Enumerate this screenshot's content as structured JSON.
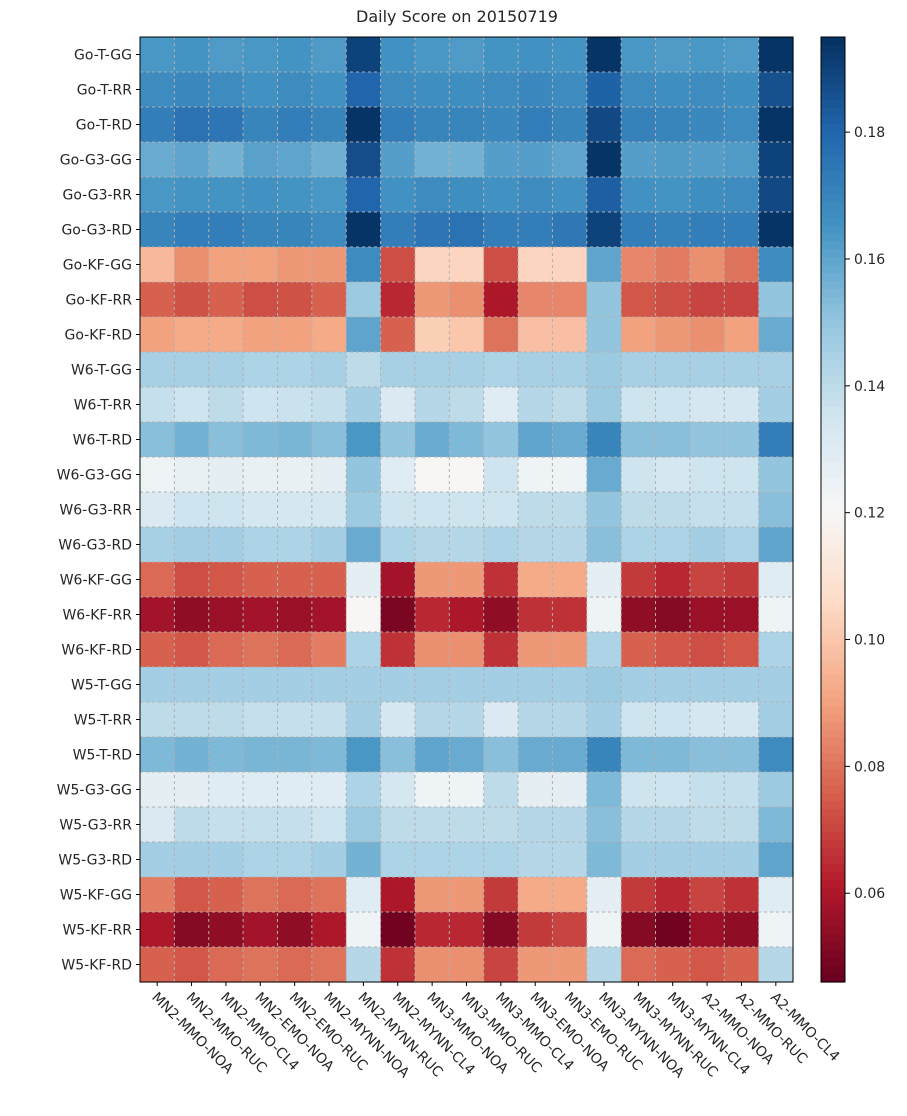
{
  "chart_data": {
    "type": "heatmap",
    "title": "Daily Score on 20150719",
    "xlabel": "",
    "ylabel": "",
    "columns": [
      "MN2-MMO-NOA",
      "MN2-MMO-RUC",
      "MN2-MMO-CL4",
      "MN2-EMO-NOA",
      "MN2-EMO-RUC",
      "MN2-MYNN-NOA",
      "MN2-MYNN-RUC",
      "MN2-MYNN-CL4",
      "MN3-MMO-NOA",
      "MN3-MMO-RUC",
      "MN3-MMO-CL4",
      "MN3-EMO-NOA",
      "MN3-EMO-RUC",
      "MN3-MYNN-NOA",
      "MN3-MYNN-RUC",
      "MN3-MYNN-CL4",
      "A2-MMO-NOA",
      "A2-MMO-RUC",
      "A2-MMO-CL4"
    ],
    "rows": [
      "Go-T-GG",
      "Go-T-RR",
      "Go-T-RD",
      "Go-G3-GG",
      "Go-G3-RR",
      "Go-G3-RD",
      "Go-KF-GG",
      "Go-KF-RR",
      "Go-KF-RD",
      "W6-T-GG",
      "W6-T-RR",
      "W6-T-RD",
      "W6-G3-GG",
      "W6-G3-RR",
      "W6-G3-RD",
      "W6-KF-GG",
      "W6-KF-RR",
      "W6-KF-RD",
      "W5-T-GG",
      "W5-T-RR",
      "W5-T-RD",
      "W5-G3-GG",
      "W5-G3-RR",
      "W5-G3-RD",
      "W5-KF-GG",
      "W5-KF-RR",
      "W5-KF-RD"
    ],
    "values": [
      [
        0.164,
        0.165,
        0.163,
        0.164,
        0.165,
        0.163,
        0.19,
        0.166,
        0.164,
        0.163,
        0.165,
        0.166,
        0.165,
        0.194,
        0.164,
        0.163,
        0.164,
        0.163,
        0.194
      ],
      [
        0.168,
        0.169,
        0.168,
        0.166,
        0.168,
        0.166,
        0.18,
        0.168,
        0.167,
        0.167,
        0.168,
        0.169,
        0.168,
        0.181,
        0.168,
        0.167,
        0.168,
        0.167,
        0.186
      ],
      [
        0.172,
        0.176,
        0.175,
        0.17,
        0.172,
        0.17,
        0.194,
        0.172,
        0.17,
        0.17,
        0.169,
        0.172,
        0.17,
        0.188,
        0.171,
        0.17,
        0.169,
        0.168,
        0.194
      ],
      [
        0.158,
        0.16,
        0.156,
        0.161,
        0.16,
        0.157,
        0.187,
        0.162,
        0.156,
        0.156,
        0.162,
        0.162,
        0.16,
        0.194,
        0.162,
        0.163,
        0.162,
        0.163,
        0.19
      ],
      [
        0.164,
        0.165,
        0.165,
        0.166,
        0.165,
        0.164,
        0.18,
        0.166,
        0.168,
        0.167,
        0.166,
        0.168,
        0.166,
        0.182,
        0.166,
        0.165,
        0.167,
        0.168,
        0.188
      ],
      [
        0.17,
        0.172,
        0.172,
        0.17,
        0.17,
        0.168,
        0.194,
        0.172,
        0.175,
        0.176,
        0.172,
        0.172,
        0.174,
        0.19,
        0.172,
        0.171,
        0.172,
        0.172,
        0.194
      ],
      [
        0.096,
        0.086,
        0.09,
        0.09,
        0.088,
        0.088,
        0.168,
        0.072,
        0.104,
        0.104,
        0.072,
        0.104,
        0.104,
        0.16,
        0.084,
        0.082,
        0.086,
        0.08,
        0.168
      ],
      [
        0.076,
        0.073,
        0.076,
        0.072,
        0.073,
        0.076,
        0.148,
        0.064,
        0.088,
        0.086,
        0.06,
        0.084,
        0.084,
        0.15,
        0.074,
        0.072,
        0.07,
        0.07,
        0.15
      ],
      [
        0.09,
        0.092,
        0.092,
        0.09,
        0.09,
        0.092,
        0.16,
        0.076,
        0.102,
        0.1,
        0.08,
        0.098,
        0.098,
        0.15,
        0.09,
        0.088,
        0.086,
        0.09,
        0.158
      ],
      [
        0.145,
        0.145,
        0.145,
        0.144,
        0.144,
        0.145,
        0.14,
        0.145,
        0.145,
        0.145,
        0.144,
        0.145,
        0.145,
        0.148,
        0.145,
        0.145,
        0.145,
        0.145,
        0.145
      ],
      [
        0.138,
        0.136,
        0.14,
        0.136,
        0.137,
        0.138,
        0.146,
        0.132,
        0.142,
        0.14,
        0.13,
        0.142,
        0.14,
        0.148,
        0.136,
        0.136,
        0.134,
        0.134,
        0.146
      ],
      [
        0.152,
        0.156,
        0.152,
        0.154,
        0.155,
        0.152,
        0.164,
        0.15,
        0.158,
        0.154,
        0.15,
        0.16,
        0.158,
        0.17,
        0.152,
        0.152,
        0.15,
        0.15,
        0.172
      ],
      [
        0.124,
        0.126,
        0.128,
        0.126,
        0.126,
        0.128,
        0.15,
        0.13,
        0.12,
        0.12,
        0.136,
        0.124,
        0.124,
        0.158,
        0.136,
        0.134,
        0.136,
        0.136,
        0.15
      ],
      [
        0.132,
        0.136,
        0.136,
        0.134,
        0.134,
        0.134,
        0.148,
        0.136,
        0.136,
        0.136,
        0.136,
        0.14,
        0.14,
        0.15,
        0.14,
        0.14,
        0.138,
        0.138,
        0.152
      ],
      [
        0.145,
        0.146,
        0.146,
        0.144,
        0.144,
        0.146,
        0.158,
        0.144,
        0.142,
        0.142,
        0.144,
        0.142,
        0.142,
        0.152,
        0.144,
        0.144,
        0.146,
        0.144,
        0.16
      ],
      [
        0.078,
        0.072,
        0.074,
        0.076,
        0.076,
        0.076,
        0.128,
        0.058,
        0.088,
        0.088,
        0.066,
        0.092,
        0.092,
        0.128,
        0.068,
        0.064,
        0.07,
        0.068,
        0.13
      ],
      [
        0.058,
        0.054,
        0.056,
        0.058,
        0.056,
        0.058,
        0.12,
        0.05,
        0.064,
        0.06,
        0.054,
        0.066,
        0.066,
        0.124,
        0.054,
        0.052,
        0.056,
        0.056,
        0.124
      ],
      [
        0.076,
        0.074,
        0.078,
        0.08,
        0.078,
        0.082,
        0.144,
        0.066,
        0.086,
        0.086,
        0.066,
        0.088,
        0.088,
        0.144,
        0.076,
        0.074,
        0.072,
        0.074,
        0.144
      ],
      [
        0.146,
        0.146,
        0.146,
        0.146,
        0.146,
        0.146,
        0.146,
        0.146,
        0.146,
        0.146,
        0.146,
        0.146,
        0.146,
        0.148,
        0.146,
        0.146,
        0.146,
        0.146,
        0.146
      ],
      [
        0.14,
        0.14,
        0.14,
        0.138,
        0.138,
        0.138,
        0.146,
        0.134,
        0.142,
        0.142,
        0.132,
        0.142,
        0.142,
        0.146,
        0.136,
        0.136,
        0.134,
        0.134,
        0.146
      ],
      [
        0.154,
        0.156,
        0.154,
        0.155,
        0.155,
        0.154,
        0.164,
        0.152,
        0.16,
        0.158,
        0.152,
        0.158,
        0.158,
        0.17,
        0.154,
        0.154,
        0.152,
        0.152,
        0.168
      ],
      [
        0.128,
        0.128,
        0.13,
        0.13,
        0.13,
        0.13,
        0.144,
        0.134,
        0.124,
        0.124,
        0.14,
        0.128,
        0.128,
        0.154,
        0.136,
        0.136,
        0.138,
        0.138,
        0.148
      ],
      [
        0.132,
        0.14,
        0.138,
        0.138,
        0.138,
        0.136,
        0.148,
        0.14,
        0.14,
        0.14,
        0.14,
        0.142,
        0.142,
        0.152,
        0.142,
        0.142,
        0.14,
        0.14,
        0.154
      ],
      [
        0.146,
        0.146,
        0.146,
        0.144,
        0.144,
        0.146,
        0.156,
        0.144,
        0.144,
        0.144,
        0.144,
        0.142,
        0.142,
        0.154,
        0.146,
        0.146,
        0.146,
        0.146,
        0.16
      ],
      [
        0.082,
        0.074,
        0.076,
        0.08,
        0.078,
        0.08,
        0.13,
        0.06,
        0.088,
        0.088,
        0.068,
        0.092,
        0.092,
        0.128,
        0.068,
        0.064,
        0.07,
        0.066,
        0.13
      ],
      [
        0.06,
        0.052,
        0.054,
        0.058,
        0.054,
        0.06,
        0.124,
        0.048,
        0.064,
        0.064,
        0.052,
        0.068,
        0.07,
        0.124,
        0.052,
        0.048,
        0.056,
        0.054,
        0.124
      ],
      [
        0.076,
        0.074,
        0.078,
        0.08,
        0.078,
        0.08,
        0.142,
        0.066,
        0.086,
        0.086,
        0.07,
        0.088,
        0.088,
        0.142,
        0.078,
        0.076,
        0.074,
        0.076,
        0.142
      ]
    ],
    "colorscale": "RdBu",
    "vmin": 0.046,
    "vmax": 0.195,
    "colorbar_ticks": [
      0.06,
      0.08,
      0.1,
      0.12,
      0.14,
      0.16,
      0.18
    ],
    "colorbar_tick_labels": [
      "0.06",
      "0.08",
      "0.10",
      "0.12",
      "0.14",
      "0.16",
      "0.18"
    ],
    "grid": true,
    "grid_style": "dashed",
    "xtick_rotation": -45
  }
}
